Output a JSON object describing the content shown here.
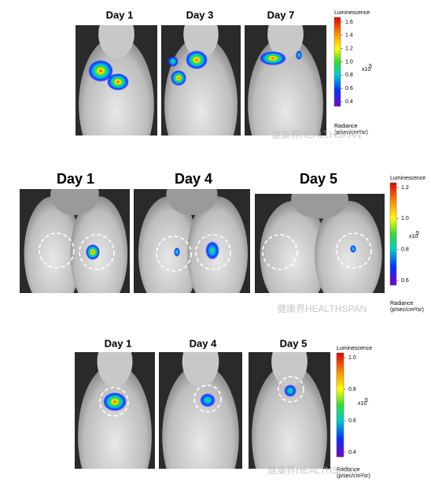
{
  "panels": [
    {
      "days": [
        "Day 1",
        "Day 3",
        "Day 7"
      ],
      "colorbar": {
        "title": "Luminescence",
        "ticks": [
          "1.6",
          "1.4",
          "1.2",
          "1.0",
          "0.8",
          "0.6",
          "0.4"
        ],
        "scale": "x10",
        "exponent": "5",
        "radiance": "Radiance",
        "unit": "(p/sec/cm²/sr)"
      }
    },
    {
      "days": [
        "Day 1",
        "Day 4",
        "Day 5"
      ],
      "colorbar": {
        "title": "Luminescence",
        "ticks": [
          "1.2",
          "1.0",
          "0.8",
          "0.6"
        ],
        "scale": "x10",
        "exponent": "5",
        "radiance": "Radiance",
        "unit": "(p/sec/cm²/sr)"
      }
    },
    {
      "days": [
        "Day 1",
        "Day 4",
        "Day 5"
      ],
      "colorbar": {
        "title": "Luminescence",
        "ticks": [
          "1.0",
          "0.8",
          "0.6",
          "0.4"
        ],
        "scale": "x10",
        "exponent": "5",
        "radiance": "Radiance",
        "unit": "(p/sec/cm²/sr)"
      }
    }
  ],
  "watermark": "健康界HEALTHSPAN"
}
